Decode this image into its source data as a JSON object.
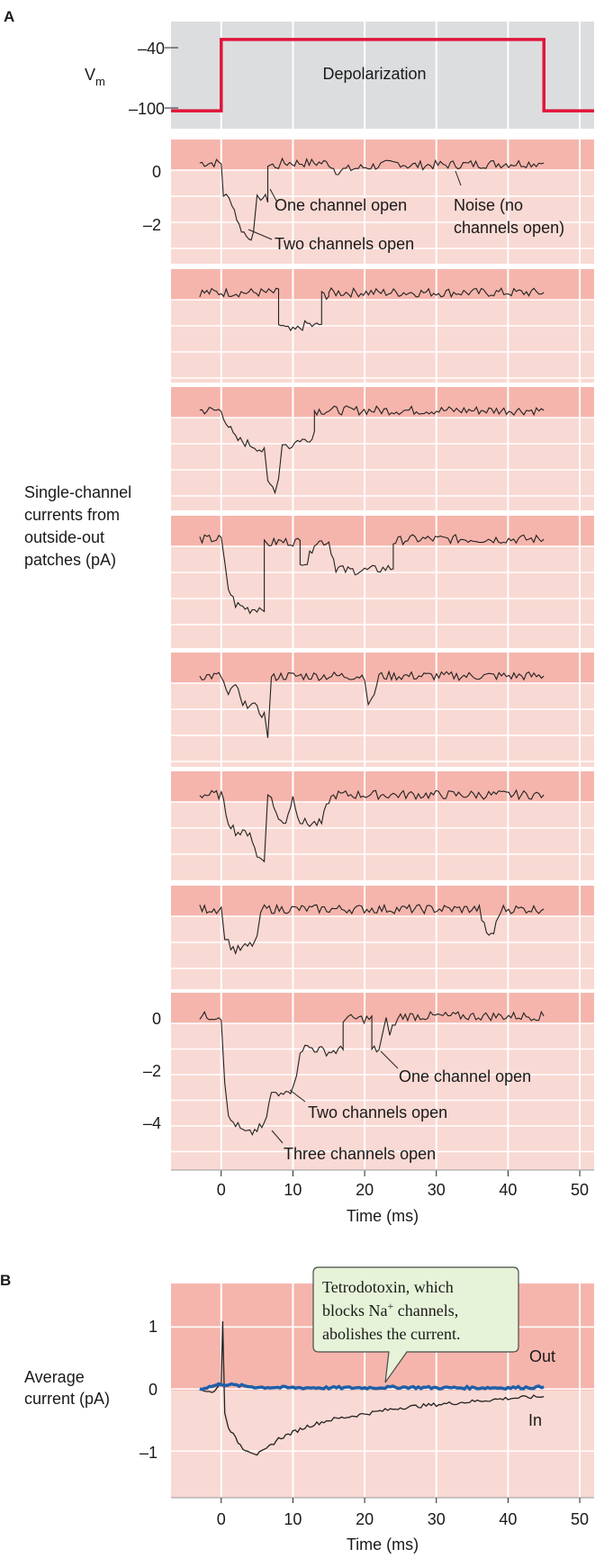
{
  "colors": {
    "voltage_bg": "#dcdddf",
    "voltage_line": "#e0153a",
    "trace_band": "#f5b5ac",
    "trace_bg": "#f9d9d3",
    "trace_line": "#222222",
    "average_bg": "#f9d9d3",
    "average_band": "#f5b5ac",
    "ttx_line": "#1f5fa8",
    "callout_bg": "#e6f3d8",
    "callout_border": "#4b4b4b",
    "grid": "#ffffff"
  },
  "panel_a": {
    "letter": "A",
    "voltage": {
      "ytick_labels": [
        "–40",
        "–100"
      ],
      "ylabel": "V",
      "ylabel_sub": "m",
      "annotation": "Depolarization"
    },
    "traces": {
      "first_ytick_labels": [
        "0",
        "–2"
      ],
      "last_ytick_labels": [
        "0",
        "–2",
        "–4"
      ],
      "ylabel_lines": [
        "Single-channel",
        "currents from",
        "outside-out",
        "patches (pA)"
      ],
      "annotations": {
        "one_channel_open_top": "One channel open",
        "noise_line1": "Noise (no",
        "noise_line2": "channels open)",
        "two_channels_open_top": "Two channels open",
        "one_channel_open_bottom": "One channel open",
        "two_channels_open_bottom": "Two channels open",
        "three_channels_open_bottom": "Three channels open"
      }
    },
    "xtick_labels": [
      "0",
      "10",
      "20",
      "30",
      "40",
      "50"
    ],
    "xlabel": "Time (ms)"
  },
  "panel_b": {
    "letter": "B",
    "ylabel_lines": [
      "Average",
      "current (pA)"
    ],
    "ytick_labels": [
      "1",
      "0",
      "–1"
    ],
    "xtick_labels": [
      "0",
      "10",
      "20",
      "30",
      "40",
      "50"
    ],
    "xlabel": "Time (ms)",
    "callout": {
      "line1": "Tetrodotoxin, which",
      "line2_pre": "blocks Na",
      "line2_sup": "+",
      "line2_post": " channels,",
      "line3": "abolishes the current."
    },
    "out_label": "Out",
    "in_label": "In"
  },
  "chart_data": [
    {
      "type": "line",
      "panel": "A-voltage",
      "xlabel": "",
      "ylabel": "Vm",
      "xlim": [
        -7,
        52
      ],
      "ylim": [
        -115,
        -25
      ],
      "series": [
        {
          "name": "",
          "x": [
            -7,
            0,
            0,
            45,
            45,
            52
          ],
          "y": [
            -100,
            -100,
            -40,
            -40,
            -100,
            -100
          ]
        }
      ],
      "annotations": [
        "Depolarization"
      ]
    },
    {
      "type": "line",
      "panel": "A-single-channel",
      "xlabel": "Time (ms)",
      "ylabel": "Single-channel currents from outside-out patches (pA)",
      "xlim": [
        -7,
        52
      ],
      "ylim_first": [
        -3.5,
        1
      ],
      "ylim_last": [
        -6,
        1
      ],
      "series": [
        {
          "name": "",
          "x": [
            -3,
            0,
            0.3,
            1.5,
            2.5,
            3.5,
            4.5,
            5,
            5.5,
            6.5,
            6.5,
            7.5,
            8,
            8.5,
            15,
            16,
            25,
            26,
            45
          ],
          "y": [
            0,
            0,
            -1.2,
            -1.5,
            -2.4,
            -2.8,
            -2.8,
            -1.4,
            -1.3,
            -1.4,
            -0.1,
            -0.1,
            -0.1,
            0,
            0,
            -0.3,
            0,
            -0.1,
            0
          ]
        },
        {
          "name": "",
          "x": [
            -3,
            0,
            8,
            8,
            9,
            10,
            12,
            13,
            14,
            14,
            15,
            15,
            16,
            45
          ],
          "y": [
            0,
            0,
            0,
            -1.2,
            -1.4,
            -1.5,
            -1.2,
            -1.3,
            -1.2,
            -0.1,
            -0.1,
            0,
            0,
            0
          ]
        },
        {
          "name": "",
          "x": [
            -3,
            0,
            1,
            2,
            4,
            5,
            6,
            6.5,
            7.5,
            8,
            8.5,
            9,
            9.5,
            11,
            12,
            13,
            13,
            14,
            45
          ],
          "y": [
            0,
            0,
            -0.6,
            -1.1,
            -1.3,
            -1.4,
            -1.6,
            -2.8,
            -3.0,
            -2.6,
            -1.2,
            -1.3,
            -1.4,
            -1.1,
            -1.2,
            -0.8,
            0,
            0,
            0
          ]
        },
        {
          "name": "",
          "x": [
            -3,
            0,
            0.5,
            1,
            2,
            4,
            6,
            6,
            8,
            11,
            11,
            12,
            13,
            15,
            16,
            17,
            17,
            20,
            24,
            24,
            26,
            45
          ],
          "y": [
            0,
            0,
            -1.0,
            -1.9,
            -2.5,
            -2.7,
            -2.6,
            -0.2,
            -0.1,
            -0.1,
            -0.8,
            -0.9,
            -0.1,
            -0.1,
            -1.1,
            -1.1,
            -1.2,
            -1.2,
            -1.1,
            -0.1,
            0,
            0
          ]
        },
        {
          "name": "",
          "x": [
            -3,
            0,
            1,
            2,
            3,
            4,
            5,
            6,
            6.5,
            7,
            8,
            9,
            20,
            20.5,
            21,
            22,
            45
          ],
          "y": [
            0,
            0,
            -0.8,
            -0.3,
            -1.2,
            -1.0,
            -1.3,
            -1.5,
            -2.3,
            -0.1,
            0,
            0,
            0,
            -1.0,
            -1.0,
            0,
            0
          ]
        },
        {
          "name": "",
          "x": [
            -3,
            0,
            1,
            2,
            3,
            4,
            5,
            6,
            6.5,
            7,
            8,
            9,
            10,
            11,
            12,
            14,
            15,
            16,
            17,
            45
          ],
          "y": [
            0,
            0,
            -1.0,
            -1.4,
            -1.5,
            -1.4,
            -2.4,
            -2.4,
            -0.1,
            -0.1,
            -1.0,
            -1.0,
            -0.1,
            -1.0,
            -1.1,
            -1.1,
            -0.2,
            0,
            0,
            0
          ]
        },
        {
          "name": "",
          "x": [
            -3,
            0,
            0.5,
            1,
            2,
            3,
            4,
            5,
            5.5,
            6,
            36,
            37,
            38,
            39,
            45
          ],
          "y": [
            0,
            0,
            -1.0,
            -1.3,
            -1.6,
            -1.5,
            -1.4,
            -1.2,
            -0.1,
            0,
            0,
            -1.0,
            -0.9,
            0,
            0
          ]
        },
        {
          "name": "",
          "x": [
            -3,
            0,
            0.5,
            1,
            2,
            3,
            4,
            5,
            6,
            7,
            8,
            9,
            10,
            10.5,
            11,
            12,
            15,
            17,
            17,
            21,
            21,
            22,
            23,
            23.5,
            25,
            26,
            45
          ],
          "y": [
            0,
            0,
            -2.5,
            -4.0,
            -4.2,
            -4.5,
            -4.6,
            -4.4,
            -4.3,
            -3.0,
            -3.1,
            -2.8,
            -2.9,
            -2.2,
            -1.3,
            -1.2,
            -1.4,
            -1.3,
            -0.1,
            -0.1,
            -1.3,
            -1.3,
            -0.2,
            -0.6,
            0,
            0,
            0
          ]
        }
      ],
      "annotations": [
        "One channel open",
        "Noise (no channels open)",
        "Two channels open",
        "One channel open",
        "Two channels open",
        "Three channels open"
      ]
    },
    {
      "type": "line",
      "panel": "B",
      "xlabel": "Time (ms)",
      "ylabel": "Average current (pA)",
      "xlim": [
        -7,
        52
      ],
      "ylim": [
        -1.75,
        1.7
      ],
      "series": [
        {
          "name": "In",
          "x": [
            -3,
            -1,
            0,
            0.2,
            0.5,
            1,
            2,
            3,
            4,
            5,
            6,
            7,
            8,
            10,
            12,
            15,
            20,
            25,
            30,
            35,
            40,
            45
          ],
          "y": [
            0,
            -0.05,
            0.1,
            1.1,
            -0.4,
            -0.6,
            -0.8,
            -0.95,
            -1.0,
            -1.05,
            -1.0,
            -0.9,
            -0.8,
            -0.7,
            -0.6,
            -0.5,
            -0.4,
            -0.3,
            -0.25,
            -0.2,
            -0.15,
            -0.12
          ]
        },
        {
          "name": "Out",
          "x": [
            -3,
            0,
            5,
            10,
            15,
            20,
            25,
            30,
            35,
            40,
            45
          ],
          "y": [
            0,
            0.08,
            0.03,
            0.02,
            0.02,
            0.02,
            0.03,
            0.02,
            0.02,
            0.02,
            0.03
          ]
        }
      ],
      "annotations": [
        "Tetrodotoxin, which blocks Na+ channels, abolishes the current.",
        "Out",
        "In"
      ]
    }
  ]
}
